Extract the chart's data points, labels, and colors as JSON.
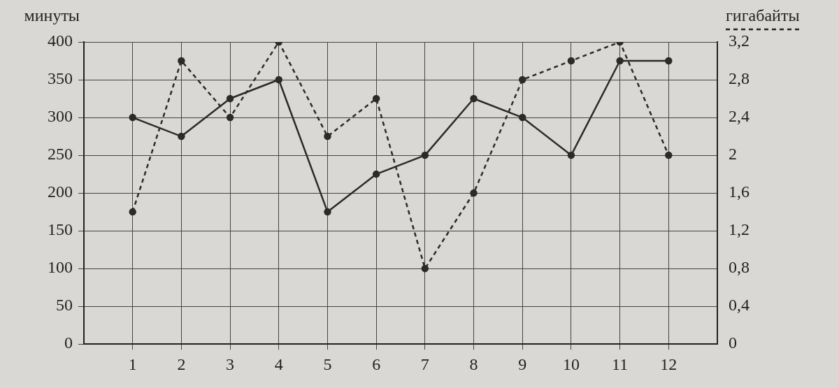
{
  "chart_data": {
    "type": "line",
    "ylabel": "минуты",
    "y2label": "гигабайты",
    "x": [
      1,
      2,
      3,
      4,
      5,
      6,
      7,
      8,
      9,
      10,
      11,
      12
    ],
    "xlim": [
      0,
      13
    ],
    "xticks": [
      1,
      2,
      3,
      4,
      5,
      6,
      7,
      8,
      9,
      10,
      11,
      12
    ],
    "ylim": [
      0,
      400
    ],
    "yticks": [
      0,
      50,
      100,
      150,
      200,
      250,
      300,
      350,
      400
    ],
    "y2lim": [
      0,
      3.2
    ],
    "y2ticks": [
      {
        "value": 0,
        "label": "0"
      },
      {
        "value": 0.4,
        "label": "0,4"
      },
      {
        "value": 0.8,
        "label": "0,8"
      },
      {
        "value": 1.2,
        "label": "1,2"
      },
      {
        "value": 1.6,
        "label": "1,6"
      },
      {
        "value": 2,
        "label": "2"
      },
      {
        "value": 2.4,
        "label": "2,4"
      },
      {
        "value": 2.8,
        "label": "2,8"
      },
      {
        "value": 3.2,
        "label": "3,2"
      }
    ],
    "grid": true,
    "marker": "circle",
    "legend": false,
    "series": [
      {
        "color": "#2b2b2b",
        "line_style": "solid",
        "values": [
          300,
          275,
          325,
          350,
          175,
          225,
          250,
          325,
          300,
          250,
          375,
          375
        ]
      },
      {
        "color": "#2b2b2b",
        "line_style": "dashed",
        "axis": "y2",
        "values": [
          1.4,
          3.0,
          2.4,
          3.2,
          2.2,
          2.6,
          0.8,
          1.6,
          2.8,
          3.0,
          3.2,
          2.0
        ]
      }
    ]
  }
}
